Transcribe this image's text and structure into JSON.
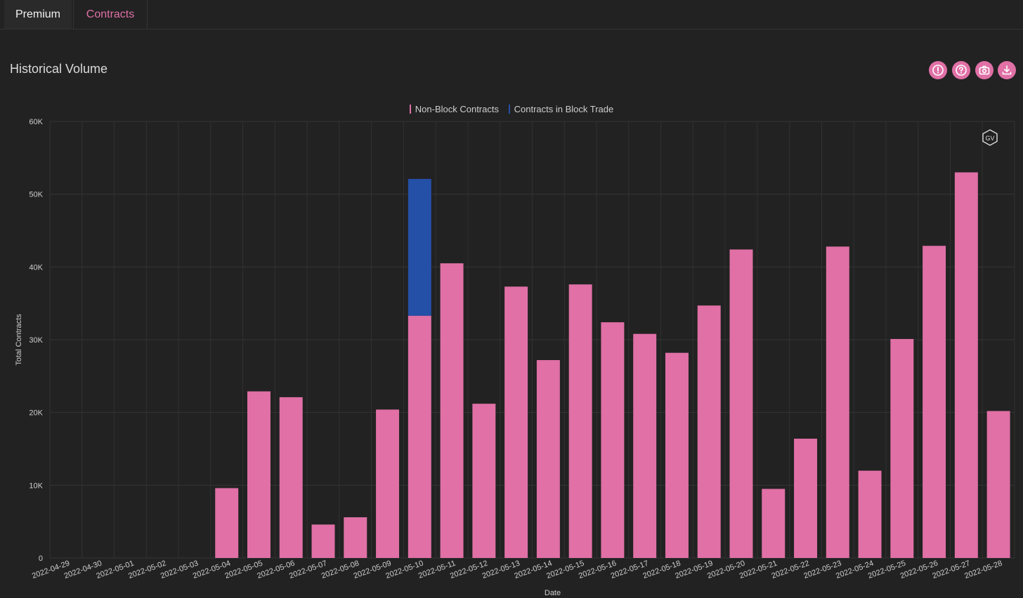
{
  "tabs": [
    {
      "label": "Premium"
    },
    {
      "label": "Contracts"
    }
  ],
  "page_title": "Historical Volume",
  "actions": [
    {
      "icon": "alert-icon"
    },
    {
      "icon": "help-icon"
    },
    {
      "icon": "camera-icon"
    },
    {
      "icon": "download-icon"
    }
  ],
  "watermark": "GV",
  "colors": {
    "accent": "#e070a6",
    "block": "#2550a8",
    "background": "#222222",
    "grid": "#343434"
  },
  "chart_data": {
    "type": "bar",
    "stacked": true,
    "legend_position": "top-center",
    "grid": true,
    "xlabel": "Date",
    "ylabel": "Total Contracts",
    "ylim": [
      0,
      60000
    ],
    "yticks": [
      0,
      10000,
      20000,
      30000,
      40000,
      50000,
      60000
    ],
    "ytick_labels": [
      "0",
      "10K",
      "20K",
      "30K",
      "40K",
      "50K",
      "60K"
    ],
    "categories": [
      "2022-04-29",
      "2022-04-30",
      "2022-05-01",
      "2022-05-02",
      "2022-05-03",
      "2022-05-04",
      "2022-05-05",
      "2022-05-06",
      "2022-05-07",
      "2022-05-08",
      "2022-05-09",
      "2022-05-10",
      "2022-05-11",
      "2022-05-12",
      "2022-05-13",
      "2022-05-14",
      "2022-05-15",
      "2022-05-16",
      "2022-05-17",
      "2022-05-18",
      "2022-05-19",
      "2022-05-20",
      "2022-05-21",
      "2022-05-22",
      "2022-05-23",
      "2022-05-24",
      "2022-05-25",
      "2022-05-26",
      "2022-05-27",
      "2022-05-28"
    ],
    "series": [
      {
        "name": "Non-Block Contracts",
        "color": "#e070a6",
        "values": [
          0,
          0,
          0,
          0,
          0,
          9600,
          22900,
          22100,
          4600,
          5600,
          20400,
          33300,
          40500,
          21200,
          37300,
          27200,
          37600,
          32400,
          30800,
          28200,
          34700,
          42400,
          9500,
          16400,
          42800,
          12000,
          30100,
          42900,
          53000,
          20200
        ]
      },
      {
        "name": "Contracts in Block Trade",
        "color": "#2550a8",
        "values": [
          0,
          0,
          0,
          0,
          0,
          0,
          0,
          0,
          0,
          0,
          0,
          18800,
          0,
          0,
          0,
          0,
          0,
          0,
          0,
          0,
          0,
          0,
          0,
          0,
          0,
          0,
          0,
          0,
          0,
          0
        ]
      }
    ]
  }
}
